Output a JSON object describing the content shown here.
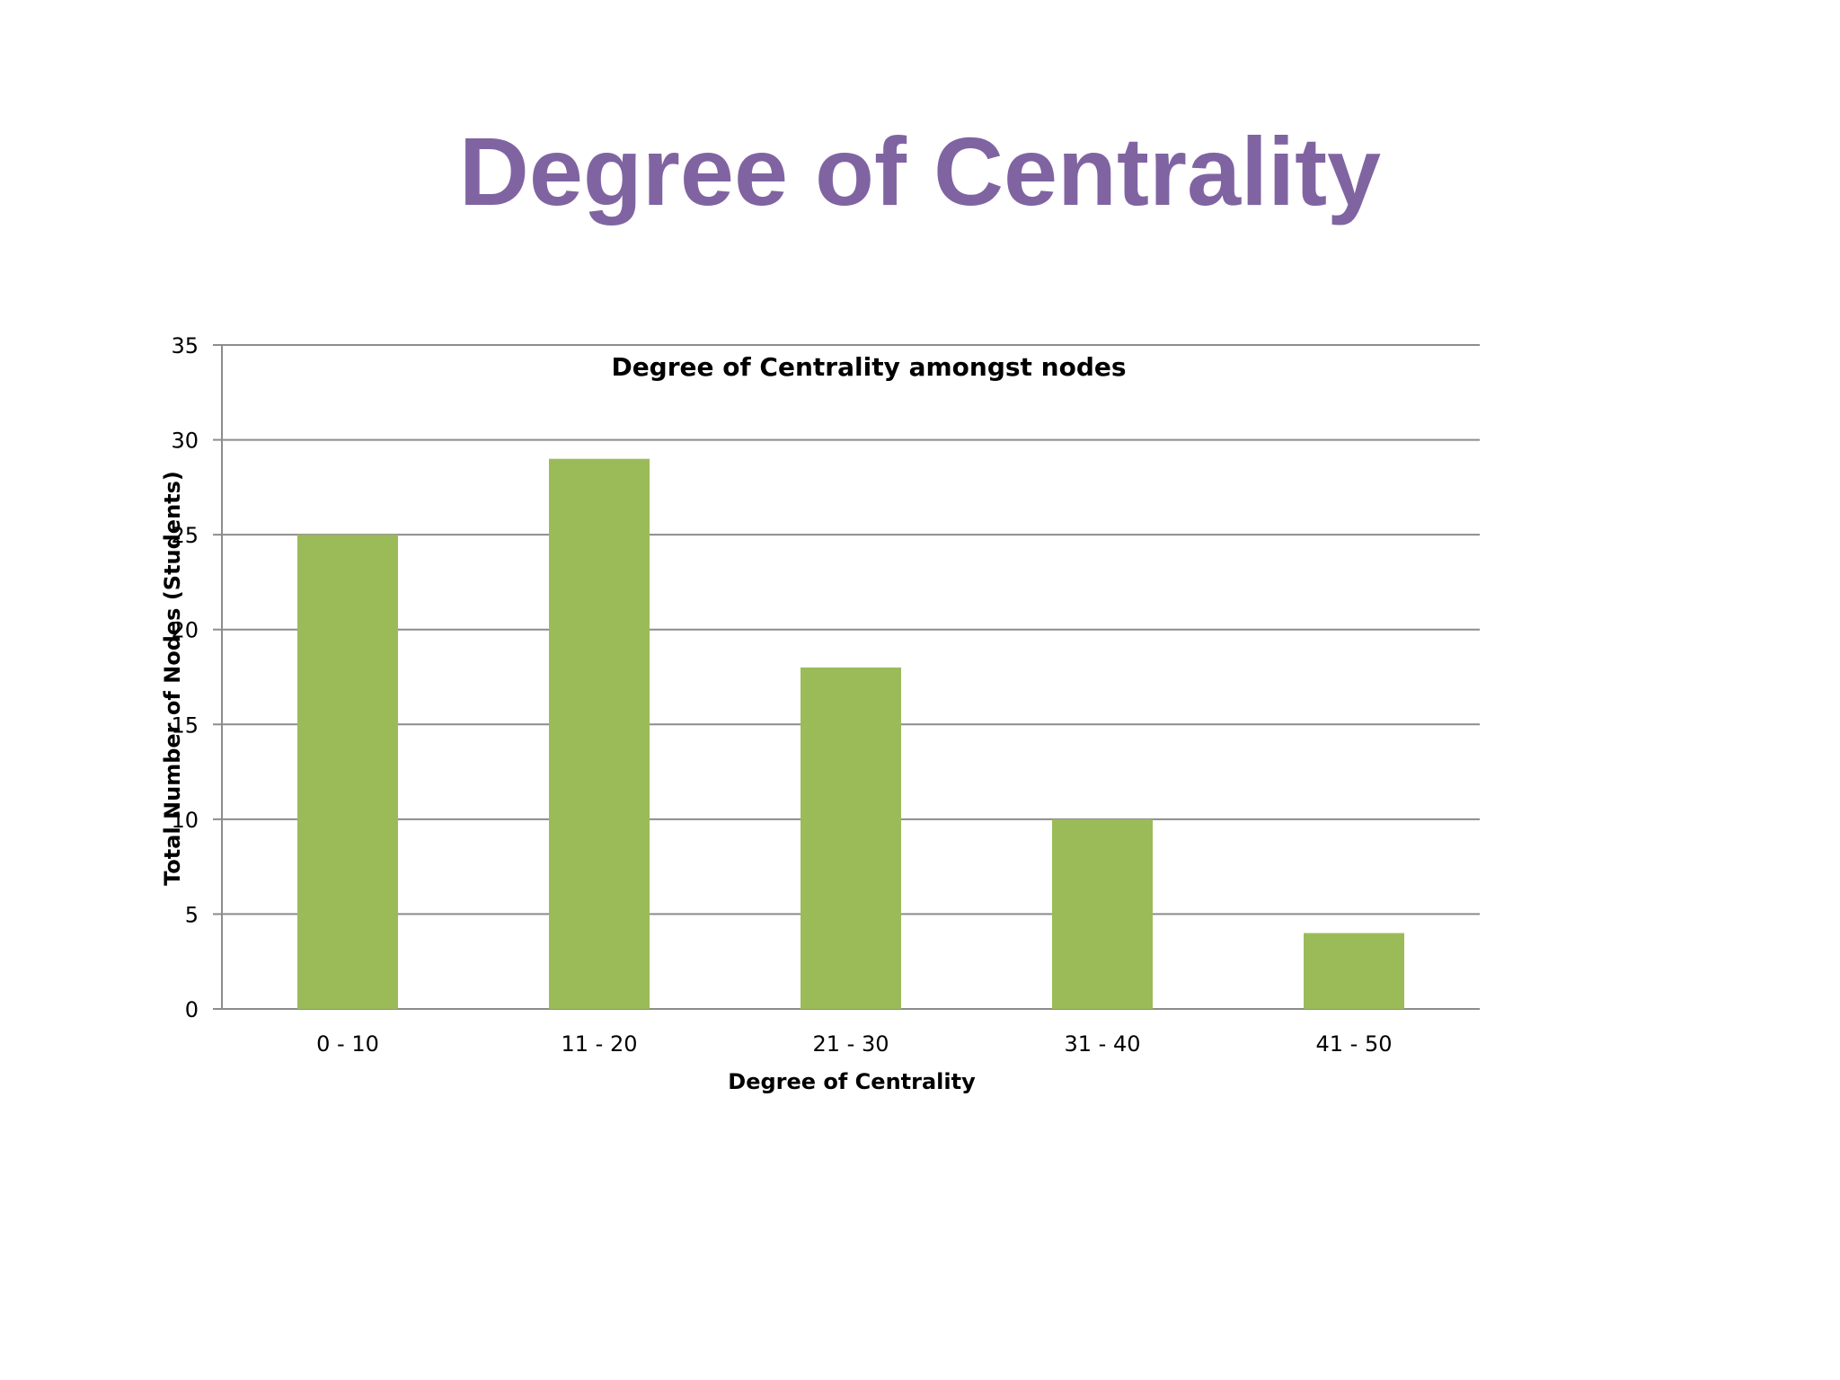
{
  "slide": {
    "title": "Degree of Centrality"
  },
  "chart_data": {
    "type": "bar",
    "title": "Degree of Centrality amongst nodes",
    "xlabel": "Degree of Centrality",
    "ylabel": "Total Number of Nodes (Students)",
    "categories": [
      "0 - 10",
      "11 - 20",
      "21 - 30",
      "31 - 40",
      "41 - 50"
    ],
    "values": [
      25,
      29,
      18,
      10,
      4
    ],
    "ylim": [
      0,
      35
    ],
    "yticks": [
      0,
      5,
      10,
      15,
      20,
      25,
      30,
      35
    ],
    "grid": true,
    "legend": "none",
    "colors": {
      "bar": "#9bbb59",
      "grid": "#8c8c8c",
      "axis": "#8c8c8c",
      "text": "#000000"
    }
  }
}
